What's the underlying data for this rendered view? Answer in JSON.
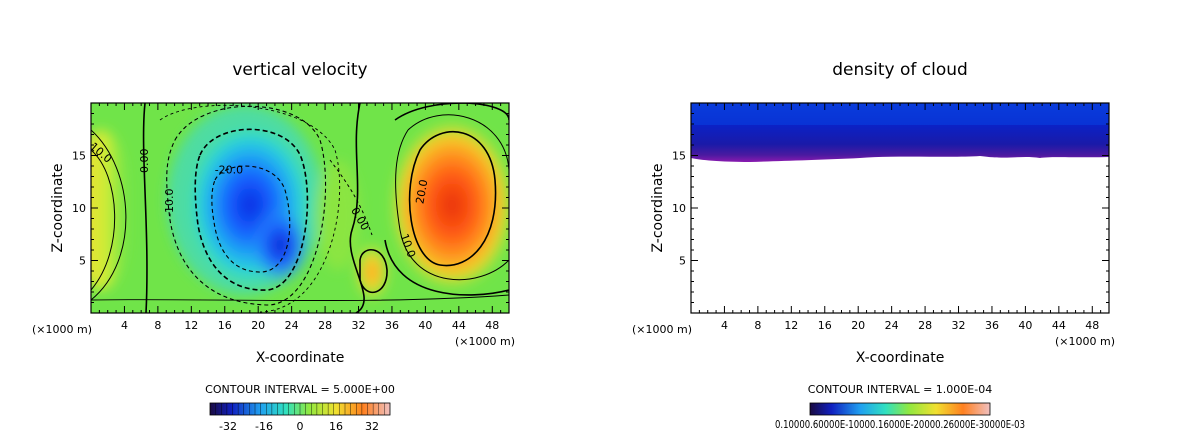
{
  "chart_data": [
    {
      "type": "heatmap",
      "title": "vertical velocity",
      "xlabel": "X-coordinate",
      "ylabel": "Z-coordinate",
      "x_unit_label": "(×1000 m)",
      "x_ticks": [
        4,
        8,
        12,
        16,
        20,
        24,
        28,
        32,
        36,
        40,
        44,
        48
      ],
      "y_ticks": [
        5,
        10,
        15
      ],
      "xlim": [
        0,
        50
      ],
      "ylim": [
        0,
        20
      ],
      "contour_interval_text": "CONTOUR INTERVAL = 5.000E+00",
      "colorbar_ticks": [
        "-32",
        "-16",
        "0",
        "16",
        "32"
      ],
      "colorbar_range": [
        -40,
        40
      ],
      "contour_labels": [
        {
          "text": "0.00",
          "x": 6.8,
          "y": 14.5,
          "angle": -90
        },
        {
          "text": "-10.0",
          "x": 9.8,
          "y": 10.5,
          "angle": -90
        },
        {
          "text": "-20.0",
          "x": 16.5,
          "y": 13.3,
          "angle": 0
        },
        {
          "text": "0.00",
          "x": 31.8,
          "y": 8.8,
          "angle": 60
        },
        {
          "text": "10.0",
          "x": 37.5,
          "y": 6.3,
          "angle": 70
        },
        {
          "text": "20.0",
          "x": 40.0,
          "y": 11.5,
          "angle": -80
        },
        {
          "text": "10.0",
          "x": 0.9,
          "y": 15.0,
          "angle": 40
        }
      ],
      "features": [
        {
          "value": -33,
          "x": 19.0,
          "y": 9.0
        },
        {
          "value": -28,
          "x": 22.5,
          "y": 6.0
        },
        {
          "value": 34,
          "x": 42.5,
          "y": 10.0
        },
        {
          "value": 18,
          "x": 33.5,
          "y": 3.8
        },
        {
          "value": 10,
          "x": 1.0,
          "y": 9.0
        }
      ]
    },
    {
      "type": "heatmap",
      "title": "density of cloud",
      "xlabel": "X-coordinate",
      "ylabel": "Z-coordinate",
      "x_unit_label": "(×1000 m)",
      "x_ticks": [
        4,
        8,
        12,
        16,
        20,
        24,
        28,
        32,
        36,
        40,
        44,
        48
      ],
      "y_ticks": [
        5,
        10,
        15
      ],
      "xlim": [
        0,
        50
      ],
      "ylim": [
        0,
        20
      ],
      "cloud_base_km": 14.8,
      "contour_interval_text": "CONTOUR INTERVAL = 1.000E-04",
      "colorbar_ticks_text": "0.10000.60000E-10000.16000E-20000.26000E-30000E-03"
    }
  ],
  "colors": {
    "axis": "#000000",
    "background": "#ffffff"
  }
}
